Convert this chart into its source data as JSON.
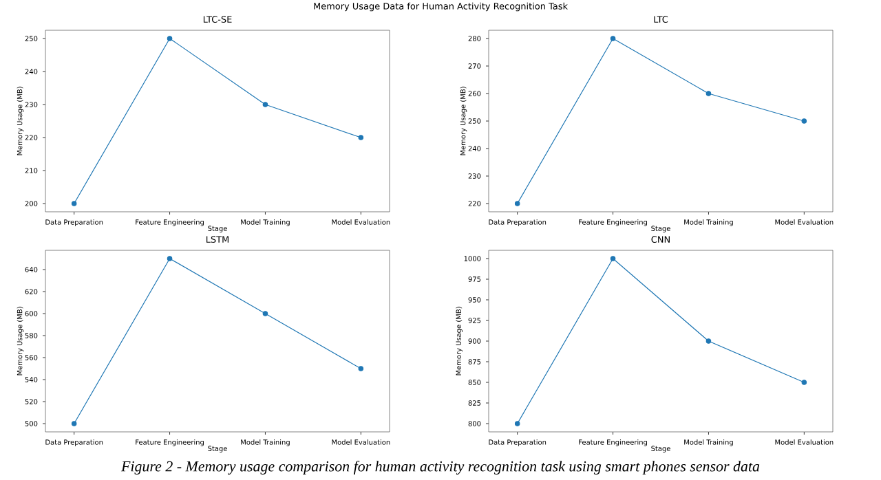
{
  "chart_data": [
    {
      "type": "line",
      "title": "LTC-SE",
      "xlabel": "Stage",
      "ylabel": "Memory Usage (MB)",
      "categories": [
        "Data Preparation",
        "Feature Engineering",
        "Model Training",
        "Model Evaluation"
      ],
      "values": [
        200,
        250,
        230,
        220
      ],
      "color": "#1f77b4",
      "marker": "circle",
      "ylim": [
        197.5,
        252.5
      ],
      "yticks": [
        200,
        210,
        220,
        230,
        240,
        250
      ],
      "annotations": [
        "Memory Usage Data for Human Activity Recognition Task",
        "Figure 2 - Memory usage comparison for human activity recognition task using smart phones sensor data"
      ]
    },
    {
      "type": "line",
      "title": "LTC",
      "xlabel": "Stage",
      "ylabel": "Memory Usage (MB)",
      "categories": [
        "Data Preparation",
        "Feature Engineering",
        "Model Training",
        "Model Evaluation"
      ],
      "values": [
        220,
        280,
        260,
        250
      ],
      "color": "#1f77b4",
      "marker": "circle",
      "ylim": [
        217,
        283
      ],
      "yticks": [
        220,
        230,
        240,
        250,
        260,
        270,
        280
      ]
    },
    {
      "type": "line",
      "title": "LSTM",
      "xlabel": "Stage",
      "ylabel": "Memory Usage (MB)",
      "categories": [
        "Data Preparation",
        "Feature Engineering",
        "Model Training",
        "Model Evaluation"
      ],
      "values": [
        500,
        650,
        600,
        550
      ],
      "color": "#1f77b4",
      "marker": "circle",
      "ylim": [
        492.5,
        657.5
      ],
      "yticks": [
        500,
        520,
        540,
        560,
        580,
        600,
        620,
        640
      ]
    },
    {
      "type": "line",
      "title": "CNN",
      "xlabel": "Stage",
      "ylabel": "Memory Usage (MB)",
      "categories": [
        "Data Preparation",
        "Feature Engineering",
        "Model Training",
        "Model Evaluation"
      ],
      "values": [
        800,
        1000,
        900,
        850
      ],
      "color": "#1f77b4",
      "marker": "circle",
      "ylim": [
        790,
        1010
      ],
      "yticks": [
        800,
        825,
        850,
        875,
        900,
        925,
        950,
        975,
        1000
      ]
    }
  ]
}
